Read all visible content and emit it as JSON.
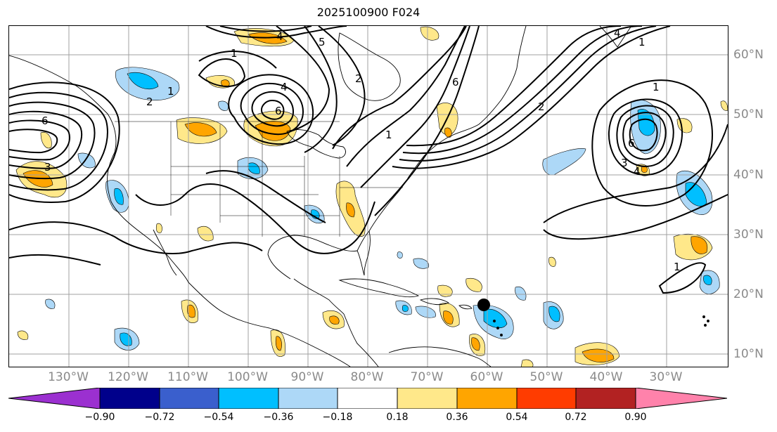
{
  "title": "2025100900 F024",
  "lon_labels": [
    "130°W",
    "120°W",
    "110°W",
    "100°W",
    "90°W",
    "80°W",
    "70°W",
    "60°W",
    "50°W",
    "40°W",
    "30°W"
  ],
  "lat_labels": [
    "60°N",
    "50°N",
    "40°N",
    "30°N",
    "20°N",
    "10°N"
  ],
  "contour_labels": [
    "1",
    "2",
    "3",
    "4",
    "5",
    "6"
  ],
  "colorbar": {
    "ticks": [
      "−0.90",
      "−0.72",
      "−0.54",
      "−0.36",
      "−0.18",
      "0.18",
      "0.36",
      "0.54",
      "0.72",
      "0.90"
    ],
    "colors": {
      "under": "#9b30d0",
      "b1": "#00008b",
      "b2": "#3a5fcd",
      "b3": "#00bfff",
      "b4": "#add8f7",
      "b5": "#ffffff",
      "b6": "#ffe88a",
      "b7": "#ffa500",
      "b8": "#ff3c00",
      "b9": "#b22222",
      "over": "#ff82ab"
    }
  },
  "marker": {
    "lon": -60.5,
    "lat": 18.5
  }
}
